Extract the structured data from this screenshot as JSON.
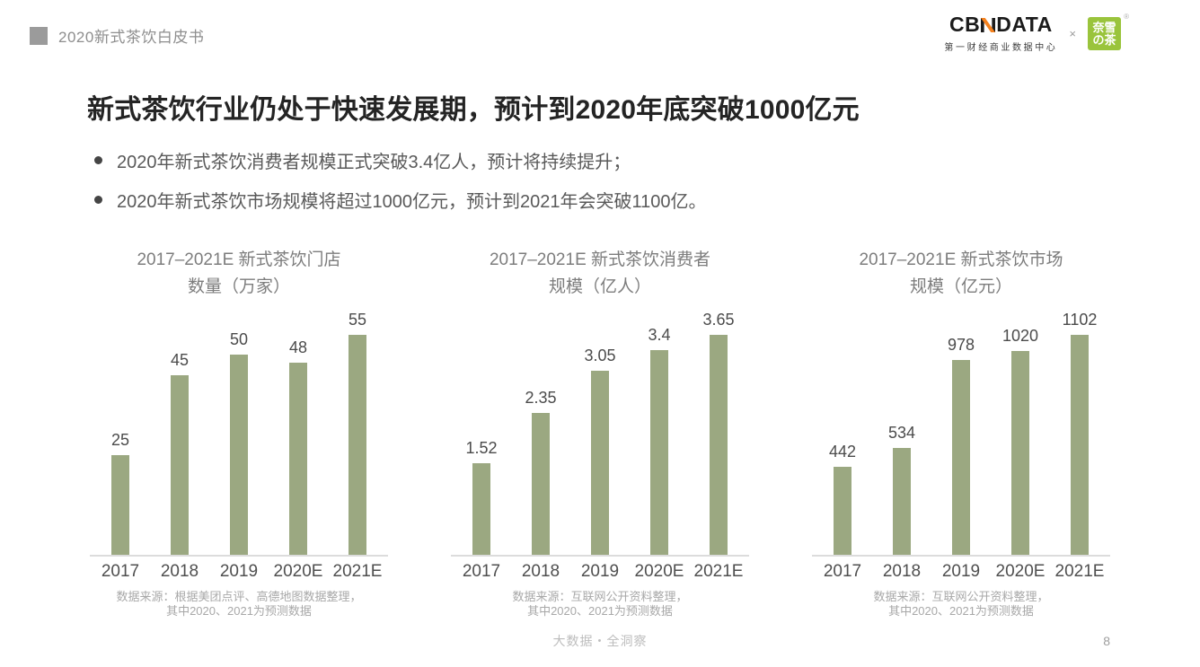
{
  "header": {
    "doc_title": "2020新式茶饮白皮书"
  },
  "logos": {
    "cbndata_prefix": "CB",
    "cbndata_suffix": "DATA",
    "cbndata_tagline": "第一财经商业数据中心",
    "separator": "×",
    "naixue_line1": "奈雪",
    "naixue_line2": "の茶",
    "registered_mark": "®"
  },
  "title": "新式茶饮行业仍处于快速发展期，预计到2020年底突破1000亿元",
  "bullets": [
    "2020年新式茶饮消费者规模正式突破3.4亿人，预计将持续提升；",
    "2020年新式茶饮市场规模将超过1000亿元，预计到2021年会突破1100亿。"
  ],
  "colors": {
    "bar": "#9ba881",
    "cbndata_orange": "#f5821f",
    "naixue_green": "#9ac43c"
  },
  "chart_data": [
    {
      "type": "bar",
      "title": "2017–2021E 新式茶饮门店数量（万家）",
      "title_line1": "2017–2021E 新式茶饮门店",
      "title_line2": "数量（万家）",
      "categories": [
        "2017",
        "2018",
        "2019",
        "2020E",
        "2021E"
      ],
      "values": [
        25,
        45,
        50,
        48,
        55
      ],
      "xlabel": "",
      "ylabel": "万家",
      "ylim": [
        0,
        55
      ],
      "grid": false,
      "legend": false,
      "source_line1": "数据来源：根据美团点评、高德地图数据整理，",
      "source_line2": "其中2020、2021为预测数据"
    },
    {
      "type": "bar",
      "title": "2017–2021E 新式茶饮消费者规模（亿人）",
      "title_line1": "2017–2021E 新式茶饮消费者",
      "title_line2": "规模（亿人）",
      "categories": [
        "2017",
        "2018",
        "2019",
        "2020E",
        "2021E"
      ],
      "values": [
        1.52,
        2.35,
        3.05,
        3.4,
        3.65
      ],
      "xlabel": "",
      "ylabel": "亿人",
      "ylim": [
        0,
        3.65
      ],
      "grid": false,
      "legend": false,
      "source_line1": "数据来源：互联网公开资料整理，",
      "source_line2": "其中2020、2021为预测数据"
    },
    {
      "type": "bar",
      "title": "2017–2021E 新式茶饮市场规模（亿元）",
      "title_line1": "2017–2021E 新式茶饮市场",
      "title_line2": "规模（亿元）",
      "categories": [
        "2017",
        "2018",
        "2019",
        "2020E",
        "2021E"
      ],
      "values": [
        442,
        534,
        978,
        1020,
        1102
      ],
      "xlabel": "",
      "ylabel": "亿元",
      "ylim": [
        0,
        1102
      ],
      "grid": false,
      "legend": false,
      "source_line1": "数据来源：互联网公开资料整理，",
      "source_line2": "其中2020、2021为预测数据"
    }
  ],
  "footer": {
    "slogan": "大数据・全洞察",
    "page_number": "8"
  }
}
